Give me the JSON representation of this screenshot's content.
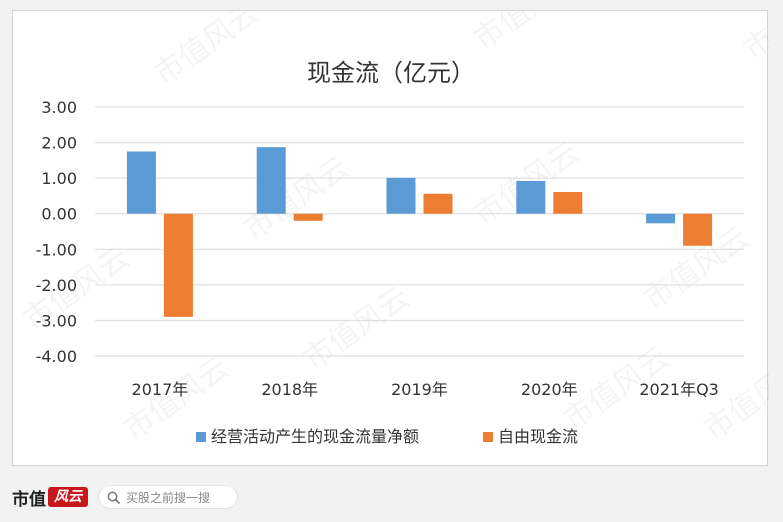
{
  "chart_data": {
    "type": "bar",
    "title": "现金流（亿元）",
    "categories": [
      "2017年",
      "2018年",
      "2019年",
      "2020年",
      "2021年Q3"
    ],
    "series": [
      {
        "name": "经营活动产生的现金流量净额",
        "color": "#5b9bd5",
        "values": [
          1.75,
          1.87,
          1.01,
          0.92,
          -0.27
        ]
      },
      {
        "name": "自由现金流",
        "color": "#ed7d31",
        "values": [
          -2.9,
          -0.2,
          0.56,
          0.61,
          -0.9
        ]
      }
    ],
    "ylim": [
      -4,
      3
    ],
    "yticks": [
      "3.00",
      "2.00",
      "1.00",
      "0.00",
      "-1.00",
      "-2.00",
      "-3.00",
      "-4.00"
    ],
    "ytick_values": [
      3,
      2,
      1,
      0,
      -1,
      -2,
      -3,
      -4
    ],
    "grid": true,
    "legend": "bottom"
  },
  "watermark": "市值风云",
  "footer": {
    "logo_text": "市值",
    "logo_mark": "风云",
    "search_placeholder": "买股之前搜一搜",
    "search_icon": "search-icon"
  }
}
